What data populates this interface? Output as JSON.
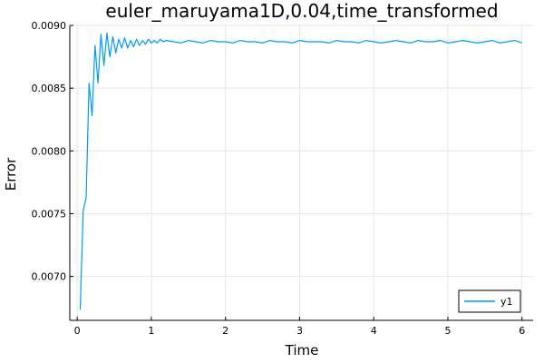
{
  "chart_data": {
    "type": "line",
    "title": "euler_maruyama1D,0.04,time_transformed",
    "xlabel": "Time",
    "ylabel": "Error",
    "xlim": [
      -0.1,
      6.15
    ],
    "ylim": [
      0.00665,
      0.009
    ],
    "grid": true,
    "legend_position": "bottom-right",
    "x_ticks": [
      {
        "value": 0,
        "label": "0"
      },
      {
        "value": 1,
        "label": "1"
      },
      {
        "value": 2,
        "label": "2"
      },
      {
        "value": 3,
        "label": "3"
      },
      {
        "value": 4,
        "label": "4"
      },
      {
        "value": 5,
        "label": "5"
      },
      {
        "value": 6,
        "label": "6"
      }
    ],
    "y_ticks": [
      {
        "value": 0.007,
        "label": "0.0070"
      },
      {
        "value": 0.0075,
        "label": "0.0075"
      },
      {
        "value": 0.008,
        "label": "0.0080"
      },
      {
        "value": 0.0085,
        "label": "0.0085"
      },
      {
        "value": 0.009,
        "label": "0.0090"
      }
    ],
    "series": [
      {
        "name": "y1",
        "color": "#009af9",
        "x": [
          0.04,
          0.08,
          0.12,
          0.16,
          0.2,
          0.24,
          0.28,
          0.32,
          0.36,
          0.4,
          0.44,
          0.48,
          0.52,
          0.56,
          0.6,
          0.64,
          0.68,
          0.72,
          0.76,
          0.8,
          0.84,
          0.88,
          0.92,
          0.96,
          1.0,
          1.04,
          1.08,
          1.12,
          1.16,
          1.2,
          1.3,
          1.4,
          1.5,
          1.6,
          1.7,
          1.8,
          1.9,
          2.0,
          2.1,
          2.2,
          2.3,
          2.4,
          2.5,
          2.6,
          2.7,
          2.8,
          2.9,
          3.0,
          3.1,
          3.2,
          3.3,
          3.4,
          3.5,
          3.6,
          3.7,
          3.8,
          3.9,
          4.0,
          4.1,
          4.2,
          4.3,
          4.4,
          4.5,
          4.6,
          4.7,
          4.8,
          4.9,
          5.0,
          5.1,
          5.2,
          5.3,
          5.4,
          5.5,
          5.6,
          5.7,
          5.8,
          5.9,
          6.0
        ],
        "y": [
          0.006735,
          0.00752,
          0.00763,
          0.00854,
          0.00828,
          0.00884,
          0.00854,
          0.00893,
          0.00868,
          0.00894,
          0.00875,
          0.00891,
          0.00878,
          0.00889,
          0.00882,
          0.0089,
          0.00882,
          0.00888,
          0.00883,
          0.00889,
          0.00884,
          0.00888,
          0.00885,
          0.00889,
          0.00886,
          0.00888,
          0.00886,
          0.00889,
          0.00887,
          0.00888,
          0.00887,
          0.00886,
          0.00888,
          0.00887,
          0.00886,
          0.00888,
          0.00887,
          0.00887,
          0.00886,
          0.00888,
          0.00887,
          0.00887,
          0.00886,
          0.00888,
          0.00887,
          0.00887,
          0.00886,
          0.00888,
          0.00887,
          0.00887,
          0.00887,
          0.00886,
          0.00888,
          0.00887,
          0.00887,
          0.00886,
          0.00888,
          0.00887,
          0.00886,
          0.00887,
          0.00888,
          0.00887,
          0.00886,
          0.00888,
          0.00887,
          0.00887,
          0.00888,
          0.00886,
          0.00887,
          0.00888,
          0.00887,
          0.00886,
          0.00887,
          0.00888,
          0.00886,
          0.00887,
          0.00888,
          0.00886
        ]
      }
    ]
  }
}
